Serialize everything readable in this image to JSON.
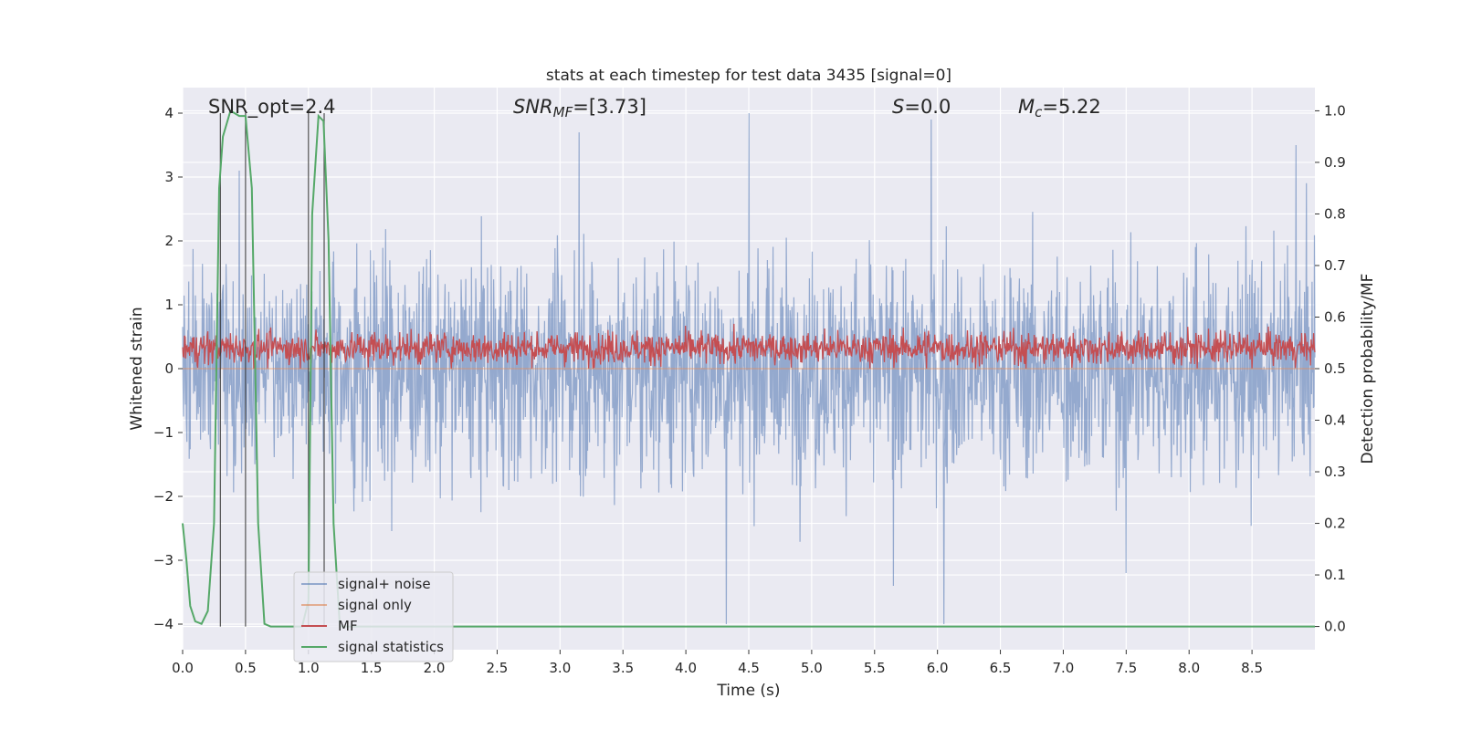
{
  "chart_data": {
    "type": "line",
    "title": "stats at each timestep for test data 3435 [signal=0]",
    "xlabel": "Time (s)",
    "ylabel_left": "Whitened strain",
    "ylabel_right": "Detection probability/MF",
    "xlim": [
      0.0,
      9.0
    ],
    "ylim_left": [
      -4.4,
      4.4
    ],
    "ylim_right": [
      -0.045,
      1.045
    ],
    "x_ticks": [
      "0.0",
      "0.5",
      "1.0",
      "1.5",
      "2.0",
      "2.5",
      "3.0",
      "3.5",
      "4.0",
      "4.5",
      "5.0",
      "5.5",
      "6.0",
      "6.5",
      "7.0",
      "7.5",
      "8.0",
      "8.5"
    ],
    "y_ticks_left": [
      "4",
      "3",
      "2",
      "1",
      "0",
      "−1",
      "−2",
      "−3",
      "−4"
    ],
    "y_ticks_right": [
      "1.0",
      "0.9",
      "0.8",
      "0.7",
      "0.6",
      "0.5",
      "0.4",
      "0.3",
      "0.2",
      "0.1",
      "0.0"
    ],
    "grid": true,
    "legend_position": "lower-left",
    "legend": [
      "signal+ noise",
      "signal only",
      "MF",
      "signal statistics"
    ],
    "annotations": {
      "snr_opt": "SNR_opt=2.4",
      "snr_mf_label": "SNR",
      "snr_mf_sub": "MF",
      "snr_mf_value": "=[3.73]",
      "s_label": "S",
      "s_value": "=0.0",
      "mc_label": "M",
      "mc_sub": "c",
      "mc_value": "=5.22"
    },
    "vertical_lines_x": [
      0.3,
      0.5,
      1.0,
      1.125
    ],
    "series": [
      {
        "name": "signal+ noise",
        "color": "#4c72b0",
        "axis": "left",
        "description_values": "dense noise, mostly within ±1.6, occasional spikes to about ±3.9",
        "x_range": [
          0.0,
          9.0
        ],
        "typical_amplitude": 1.6,
        "peak_highs": [
          [
            0.45,
            3.1
          ],
          [
            3.15,
            3.7
          ],
          [
            4.5,
            4.0
          ],
          [
            5.95,
            3.9
          ],
          [
            8.85,
            3.5
          ]
        ],
        "peak_lows": [
          [
            4.32,
            -4.0
          ],
          [
            6.05,
            -4.0
          ],
          [
            5.65,
            -3.4
          ],
          [
            7.5,
            -3.2
          ]
        ]
      },
      {
        "name": "signal only",
        "color": "#dd8452",
        "axis": "left",
        "x": [
          0.0,
          9.0
        ],
        "y": [
          0.0,
          0.0
        ]
      },
      {
        "name": "MF",
        "color": "#c44e52",
        "axis": "right",
        "baseline": 0.54,
        "range": [
          0.5,
          0.6
        ]
      },
      {
        "name": "signal statistics",
        "color": "#55a868",
        "axis": "right",
        "x": [
          0.0,
          0.03,
          0.06,
          0.1,
          0.15,
          0.2,
          0.25,
          0.29,
          0.32,
          0.38,
          0.45,
          0.5,
          0.55,
          0.6,
          0.65,
          0.7,
          0.8,
          0.9,
          0.95,
          1.0,
          1.03,
          1.08,
          1.12,
          1.16,
          1.2,
          1.25,
          1.3,
          1.5,
          2.0,
          4.0,
          6.0,
          8.0,
          9.0
        ],
        "y": [
          0.2,
          0.13,
          0.04,
          0.01,
          0.005,
          0.03,
          0.2,
          0.85,
          0.95,
          1.0,
          0.99,
          0.99,
          0.85,
          0.2,
          0.005,
          0.0,
          0.0,
          0.0,
          0.0,
          0.05,
          0.8,
          0.99,
          0.98,
          0.75,
          0.2,
          0.0,
          0.0,
          0.0,
          0.0,
          0.0,
          0.0,
          0.0,
          0.0
        ]
      }
    ]
  }
}
